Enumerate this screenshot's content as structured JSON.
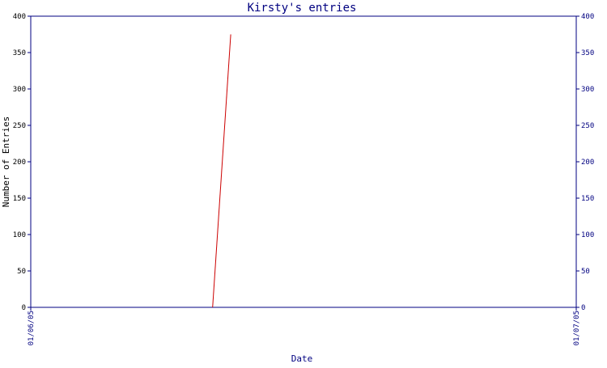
{
  "chart_data": {
    "type": "line",
    "title": "Kirsty's entries",
    "xlabel": "Date",
    "ylabel": "Number of Entries",
    "x_ticks": [
      "01/06/05",
      "01/07/05"
    ],
    "ylim": [
      0,
      400
    ],
    "y_ticks": [
      0,
      50,
      100,
      150,
      200,
      250,
      300,
      350,
      400
    ],
    "right_axis": true,
    "grid": false,
    "series": [
      {
        "color": "#cc0000",
        "points": [
          {
            "x": "2005-06-11",
            "y": 0
          },
          {
            "x": "2005-06-12",
            "y": 375
          }
        ]
      }
    ]
  },
  "colors": {
    "axis": "#000080",
    "text": "#000080",
    "label": "#000000",
    "series": "#cc0000"
  }
}
